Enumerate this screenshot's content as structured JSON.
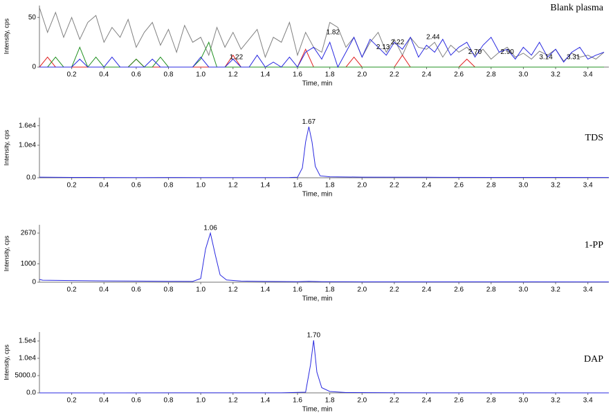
{
  "chart_data": [
    {
      "type": "line",
      "title": "Blank plasma",
      "xlabel": "Time, min",
      "ylabel": "Intensity, cps",
      "x": [
        0,
        0.05,
        0.1,
        0.15,
        0.2,
        0.25,
        0.3,
        0.35,
        0.4,
        0.45,
        0.5,
        0.55,
        0.6,
        0.65,
        0.7,
        0.75,
        0.8,
        0.85,
        0.9,
        0.95,
        1.0,
        1.05,
        1.1,
        1.15,
        1.2,
        1.25,
        1.3,
        1.35,
        1.4,
        1.45,
        1.5,
        1.55,
        1.6,
        1.65,
        1.7,
        1.75,
        1.8,
        1.85,
        1.9,
        1.95,
        2.0,
        2.05,
        2.1,
        2.15,
        2.2,
        2.25,
        2.3,
        2.35,
        2.4,
        2.45,
        2.5,
        2.55,
        2.6,
        2.65,
        2.7,
        2.75,
        2.8,
        2.85,
        2.9,
        2.95,
        3.0,
        3.05,
        3.1,
        3.15,
        3.2,
        3.25,
        3.3,
        3.35,
        3.4,
        3.45,
        3.5
      ],
      "series": [
        {
          "color": "#808080",
          "values": [
            60,
            35,
            55,
            30,
            50,
            28,
            45,
            52,
            25,
            40,
            30,
            48,
            20,
            35,
            45,
            22,
            38,
            15,
            42,
            25,
            30,
            12,
            40,
            20,
            35,
            18,
            28,
            38,
            10,
            30,
            25,
            45,
            12,
            35,
            20,
            15,
            45,
            40,
            20,
            30,
            10,
            25,
            35,
            15,
            28,
            12,
            30,
            20,
            18,
            25,
            10,
            22,
            15,
            20,
            12,
            18,
            8,
            15,
            20,
            10,
            14,
            8,
            16,
            12,
            18,
            6,
            14,
            10,
            12,
            8,
            15
          ]
        },
        {
          "color": "#e02020",
          "values": [
            0,
            10,
            0,
            0,
            0,
            0,
            0,
            0,
            0,
            0,
            0,
            0,
            8,
            0,
            0,
            0,
            0,
            0,
            0,
            0,
            0,
            0,
            0,
            0,
            12,
            0,
            0,
            0,
            0,
            0,
            0,
            0,
            0,
            18,
            0,
            0,
            0,
            0,
            0,
            10,
            0,
            0,
            0,
            0,
            0,
            12,
            0,
            0,
            0,
            0,
            0,
            0,
            0,
            8,
            0,
            0,
            0,
            0,
            0,
            0,
            0,
            0,
            0,
            0,
            0,
            0,
            0,
            0,
            0,
            0,
            0
          ]
        },
        {
          "color": "#209020",
          "values": [
            0,
            0,
            10,
            0,
            0,
            20,
            0,
            10,
            0,
            0,
            0,
            0,
            8,
            0,
            0,
            10,
            0,
            0,
            0,
            0,
            8,
            25,
            0,
            0,
            0,
            0,
            0,
            0,
            0,
            0,
            0,
            0,
            0,
            0,
            0,
            0,
            0,
            0,
            0,
            0,
            0,
            0,
            0,
            0,
            0,
            0,
            0,
            0,
            0,
            0,
            0,
            0,
            0,
            0,
            0,
            0,
            0,
            0,
            0,
            0,
            0,
            0,
            0,
            0,
            0,
            0,
            0,
            0,
            0,
            0,
            0
          ]
        },
        {
          "color": "#2828e0",
          "values": [
            0,
            0,
            0,
            0,
            0,
            8,
            0,
            0,
            0,
            10,
            0,
            0,
            0,
            0,
            8,
            0,
            0,
            0,
            0,
            0,
            10,
            0,
            0,
            0,
            8,
            0,
            0,
            12,
            0,
            5,
            0,
            10,
            0,
            15,
            20,
            8,
            25,
            0,
            15,
            30,
            10,
            28,
            20,
            12,
            25,
            18,
            30,
            10,
            22,
            15,
            28,
            12,
            20,
            25,
            10,
            22,
            30,
            15,
            18,
            8,
            20,
            12,
            25,
            10,
            18,
            5,
            15,
            20,
            8,
            12,
            15
          ]
        }
      ],
      "annotations": [
        {
          "text": "1.22",
          "x": 1.22,
          "y": 10
        },
        {
          "text": "1.82",
          "x": 1.82,
          "y": 35
        },
        {
          "text": "2.13",
          "x": 2.13,
          "y": 20
        },
        {
          "text": "2.22",
          "x": 2.22,
          "y": 25
        },
        {
          "text": "2.44",
          "x": 2.44,
          "y": 30
        },
        {
          "text": "2.70",
          "x": 2.7,
          "y": 15
        },
        {
          "text": "2.90",
          "x": 2.9,
          "y": 15
        },
        {
          "text": "3.14",
          "x": 3.14,
          "y": 10
        },
        {
          "text": "3.31",
          "x": 3.31,
          "y": 10
        }
      ],
      "xlim": [
        0,
        3.53
      ],
      "xticks": [
        0.2,
        0.4,
        0.6,
        0.8,
        {
          "value": 1.0,
          "label": "1.0"
        },
        1.2,
        1.4,
        1.6,
        1.8,
        {
          "value": 2.0,
          "label": "2.0"
        },
        2.2,
        2.4,
        2.6,
        2.8,
        {
          "value": 3.0,
          "label": "3.0"
        },
        3.2,
        3.4
      ],
      "ylim": [
        0,
        62
      ],
      "yticks": [
        0,
        50
      ]
    },
    {
      "type": "line",
      "title": "TDS",
      "xlabel": "Time, min",
      "ylabel": "Intensity, cps",
      "x": [
        0,
        0.2,
        0.4,
        0.6,
        0.8,
        1.0,
        1.2,
        1.4,
        1.55,
        1.6,
        1.63,
        1.65,
        1.67,
        1.69,
        1.71,
        1.74,
        1.8,
        2.0,
        2.4,
        2.8,
        3.2,
        3.53
      ],
      "series": [
        {
          "color": "#2828e0",
          "values": [
            200,
            100,
            80,
            60,
            80,
            60,
            50,
            60,
            80,
            150,
            3000,
            11000,
            15700,
            11000,
            3500,
            600,
            300,
            200,
            150,
            100,
            100,
            80
          ]
        }
      ],
      "annotations": [
        {
          "text": "1.67",
          "x": 1.67,
          "y": 17200
        }
      ],
      "xlim": [
        0,
        3.53
      ],
      "xticks": [
        0.2,
        0.4,
        0.6,
        0.8,
        {
          "value": 1.0,
          "label": "1.0"
        },
        1.2,
        1.4,
        1.6,
        1.8,
        {
          "value": 2.0,
          "label": "2.0"
        },
        2.2,
        2.4,
        2.6,
        2.8,
        {
          "value": 3.0,
          "label": "3.0"
        },
        3.2,
        3.4
      ],
      "ylim": [
        0,
        18500
      ],
      "yticks": [
        {
          "value": 0,
          "label": "0.0"
        },
        {
          "value": 10000,
          "label": "1.0e4"
        },
        {
          "value": 16000,
          "label": "1.6e4"
        }
      ]
    },
    {
      "type": "line",
      "title": "1-PP",
      "xlabel": "Time, min",
      "ylabel": "Intensity, cps",
      "x": [
        0,
        0.02,
        0.2,
        0.4,
        0.6,
        0.8,
        0.95,
        1.0,
        1.03,
        1.06,
        1.09,
        1.12,
        1.16,
        1.25,
        1.4,
        1.6,
        1.67,
        1.75,
        2.0,
        2.5,
        3.0,
        3.53
      ],
      "series": [
        {
          "color": "#2828e0",
          "values": [
            150,
            110,
            90,
            70,
            60,
            50,
            40,
            200,
            1800,
            2670,
            1500,
            400,
            120,
            60,
            40,
            30,
            50,
            30,
            20,
            20,
            20,
            15
          ]
        }
      ],
      "annotations": [
        {
          "text": "1.06",
          "x": 1.06,
          "y": 2930
        }
      ],
      "xlim": [
        0,
        3.53
      ],
      "xticks": [
        0.2,
        0.4,
        0.6,
        0.8,
        {
          "value": 1.0,
          "label": "1.0"
        },
        1.2,
        1.4,
        1.6,
        1.8,
        {
          "value": 2.0,
          "label": "2.0"
        },
        2.2,
        2.4,
        2.6,
        2.8,
        {
          "value": 3.0,
          "label": "3.0"
        },
        3.2,
        3.4
      ],
      "ylim": [
        0,
        3120
      ],
      "yticks": [
        0,
        1000,
        2670
      ]
    },
    {
      "type": "line",
      "title": "DAP",
      "xlabel": "Time, min",
      "ylabel": "Intensity, cps",
      "x": [
        0,
        0.5,
        1.0,
        1.5,
        1.65,
        1.68,
        1.7,
        1.72,
        1.75,
        1.8,
        1.9,
        2.2,
        2.8,
        3.53
      ],
      "series": [
        {
          "color": "#2828e0",
          "values": [
            0,
            0,
            20,
            30,
            200,
            8000,
            15200,
            6000,
            1500,
            400,
            100,
            50,
            20,
            10
          ]
        }
      ],
      "annotations": [
        {
          "text": "1.70",
          "x": 1.7,
          "y": 16600
        }
      ],
      "xlim": [
        0,
        3.53
      ],
      "xticks": [
        0.2,
        0.4,
        0.6,
        0.8,
        {
          "value": 1.0,
          "label": "1.0"
        },
        1.2,
        1.4,
        1.6,
        1.8,
        {
          "value": 2.0,
          "label": "2.0"
        },
        2.2,
        2.4,
        2.6,
        2.8,
        {
          "value": 3.0,
          "label": "3.0"
        },
        3.2,
        3.4
      ],
      "ylim": [
        0,
        17600
      ],
      "yticks": [
        {
          "value": 0,
          "label": "0.0"
        },
        {
          "value": 5000,
          "label": "5000.0"
        },
        {
          "value": 10000,
          "label": "1.0e4"
        },
        {
          "value": 15000,
          "label": "1.5e4"
        }
      ]
    }
  ]
}
